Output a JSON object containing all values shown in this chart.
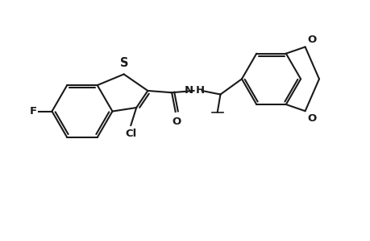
{
  "background_color": "#ffffff",
  "line_color": "#1a1a1a",
  "line_width": 1.5,
  "font_size": 9.5,
  "figsize": [
    4.6,
    3.0
  ],
  "dpi": 100,
  "xlim": [
    0,
    10
  ],
  "ylim": [
    0,
    6.5
  ]
}
